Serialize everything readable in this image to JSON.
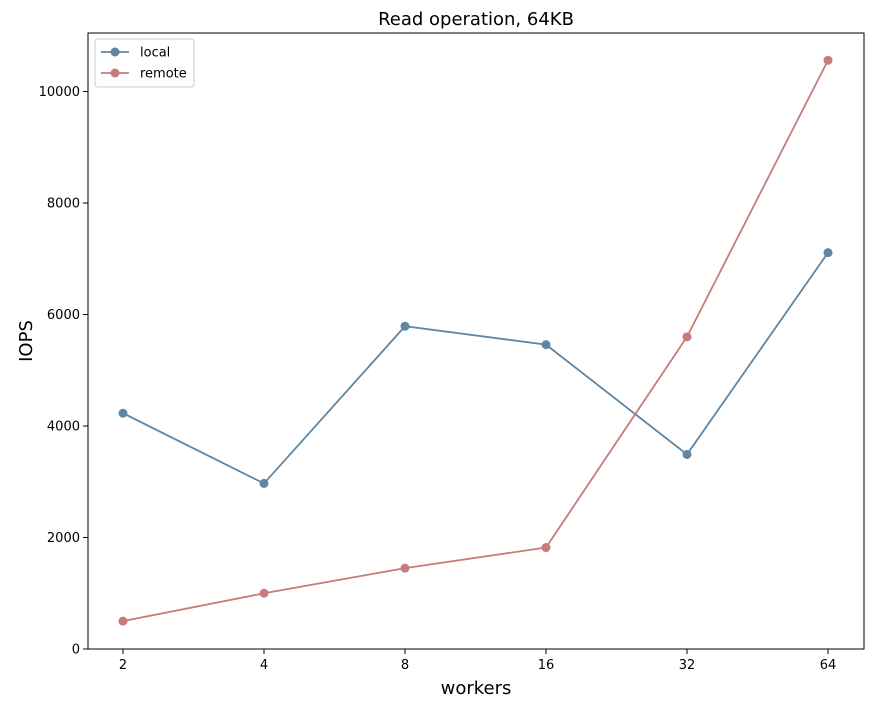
{
  "chart_data": {
    "type": "line",
    "title": "Read operation, 64KB",
    "xlabel": "workers",
    "ylabel": "IOPS",
    "categories": [
      "2",
      "4",
      "8",
      "16",
      "32",
      "64"
    ],
    "series": [
      {
        "name": "local",
        "color": "#5f86a3",
        "values": [
          4230,
          2970,
          5790,
          5460,
          3490,
          7110
        ]
      },
      {
        "name": "remote",
        "color": "#c77b7b",
        "values": [
          500,
          1000,
          1450,
          1820,
          5600,
          10560
        ]
      }
    ],
    "ylim": [
      0,
      11050
    ],
    "yticks": [
      0,
      2000,
      4000,
      6000,
      8000,
      10000
    ],
    "grid": false,
    "legend_position": "top-left",
    "marker": "circle"
  }
}
